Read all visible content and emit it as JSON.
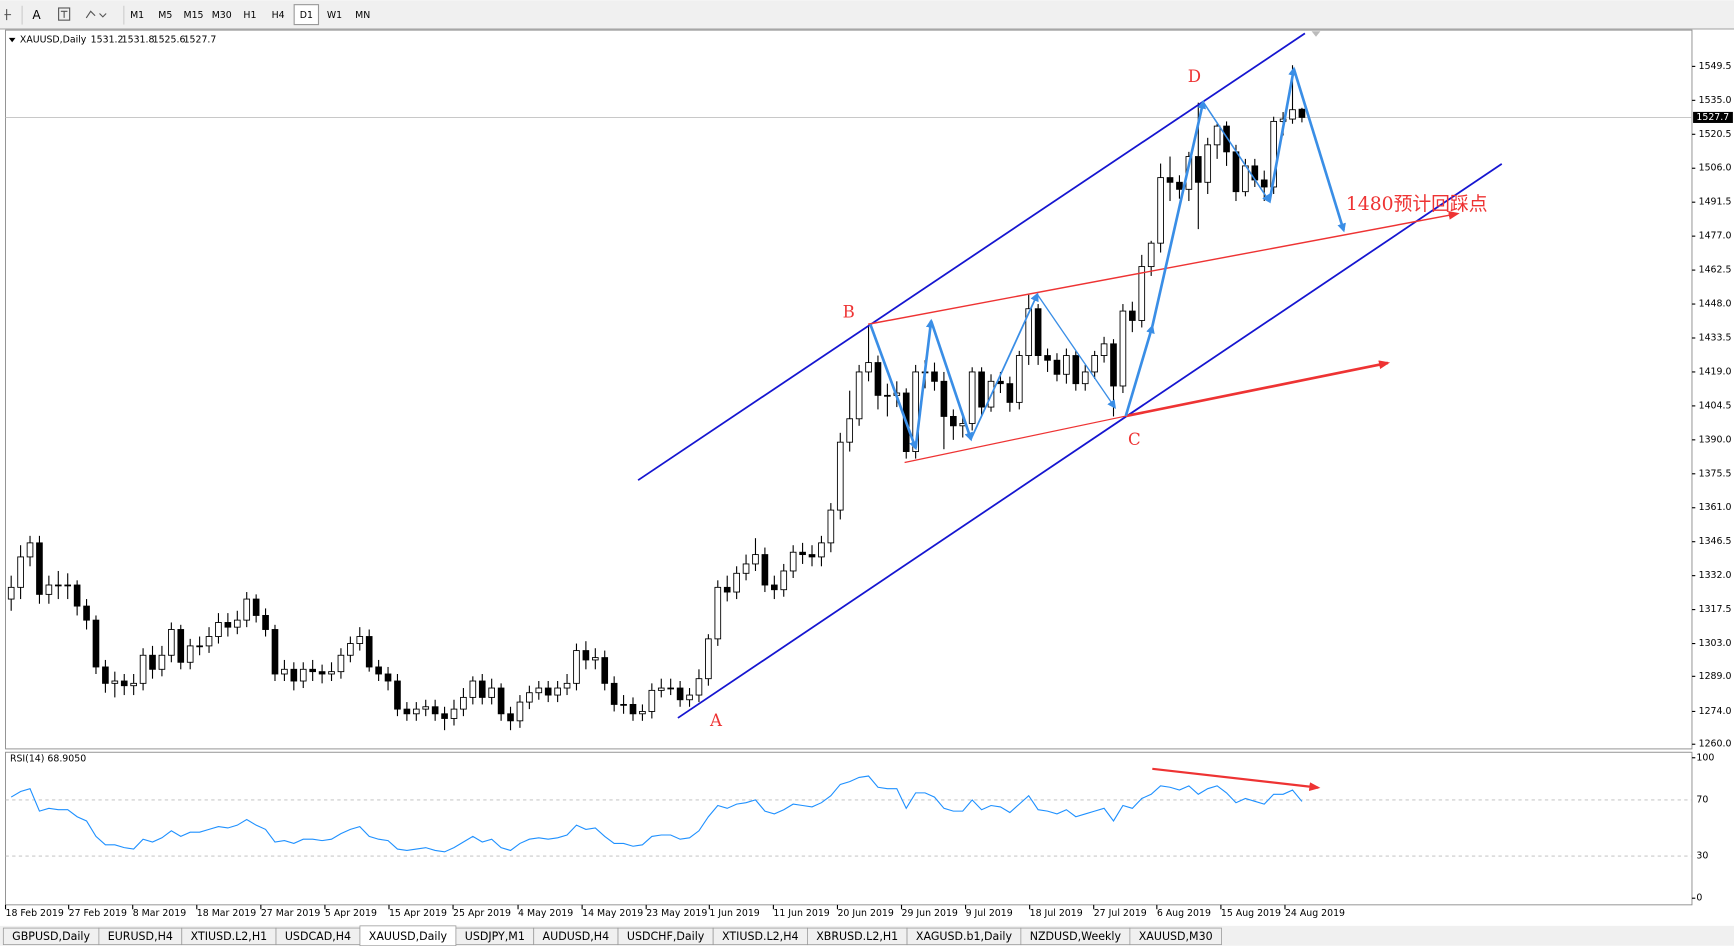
{
  "toolbar": {
    "text_tool": "A",
    "periods": [
      "M1",
      "M5",
      "M15",
      "M30",
      "H1",
      "H4",
      "D1",
      "W1",
      "MN"
    ],
    "active_period": 6
  },
  "chart_data": {
    "type": "candlestick",
    "symbol": "XAUUSD,Daily",
    "ohlc": [
      [
        1322,
        1332,
        1317,
        1327
      ],
      [
        1327,
        1345,
        1322,
        1340
      ],
      [
        1340,
        1349,
        1336,
        1346
      ],
      [
        1346,
        1349,
        1320,
        1324
      ],
      [
        1324,
        1332,
        1320,
        1328
      ],
      [
        1328,
        1334,
        1322,
        1328
      ],
      [
        1328,
        1333,
        1322,
        1328
      ],
      [
        1328,
        1330,
        1315,
        1319
      ],
      [
        1319,
        1322,
        1309,
        1313
      ],
      [
        1313,
        1315,
        1290,
        1293
      ],
      [
        1293,
        1296,
        1282,
        1286
      ],
      [
        1286,
        1291,
        1280,
        1287
      ],
      [
        1287,
        1290,
        1281,
        1285
      ],
      [
        1285,
        1290,
        1281,
        1286
      ],
      [
        1286,
        1301,
        1283,
        1298
      ],
      [
        1298,
        1302,
        1288,
        1292
      ],
      [
        1292,
        1302,
        1289,
        1298
      ],
      [
        1298,
        1312,
        1295,
        1309
      ],
      [
        1309,
        1311,
        1292,
        1295
      ],
      [
        1295,
        1305,
        1292,
        1302
      ],
      [
        1302,
        1306,
        1298,
        1302
      ],
      [
        1302,
        1310,
        1299,
        1306
      ],
      [
        1306,
        1316,
        1303,
        1312
      ],
      [
        1312,
        1316,
        1306,
        1310
      ],
      [
        1310,
        1317,
        1307,
        1313
      ],
      [
        1313,
        1325,
        1310,
        1322
      ],
      [
        1322,
        1324,
        1312,
        1315
      ],
      [
        1315,
        1318,
        1306,
        1309
      ],
      [
        1309,
        1311,
        1287,
        1290
      ],
      [
        1290,
        1296,
        1287,
        1292
      ],
      [
        1292,
        1295,
        1283,
        1287
      ],
      [
        1287,
        1295,
        1284,
        1292
      ],
      [
        1292,
        1296,
        1287,
        1291
      ],
      [
        1291,
        1294,
        1286,
        1290
      ],
      [
        1290,
        1295,
        1287,
        1291
      ],
      [
        1291,
        1301,
        1288,
        1298
      ],
      [
        1298,
        1306,
        1295,
        1303
      ],
      [
        1303,
        1310,
        1300,
        1306
      ],
      [
        1306,
        1309,
        1291,
        1293
      ],
      [
        1293,
        1296,
        1287,
        1290
      ],
      [
        1290,
        1293,
        1283,
        1287
      ],
      [
        1287,
        1290,
        1272,
        1275
      ],
      [
        1275,
        1278,
        1270,
        1273
      ],
      [
        1273,
        1278,
        1270,
        1275
      ],
      [
        1275,
        1279,
        1272,
        1276
      ],
      [
        1276,
        1279,
        1270,
        1273
      ],
      [
        1273,
        1276,
        1266,
        1271
      ],
      [
        1271,
        1279,
        1268,
        1275
      ],
      [
        1275,
        1284,
        1272,
        1280
      ],
      [
        1280,
        1289,
        1277,
        1287
      ],
      [
        1287,
        1290,
        1277,
        1280
      ],
      [
        1280,
        1288,
        1277,
        1284
      ],
      [
        1284,
        1286,
        1270,
        1273
      ],
      [
        1273,
        1276,
        1266,
        1270
      ],
      [
        1270,
        1281,
        1267,
        1278
      ],
      [
        1278,
        1285,
        1275,
        1282
      ],
      [
        1282,
        1287,
        1279,
        1284
      ],
      [
        1284,
        1287,
        1278,
        1281
      ],
      [
        1281,
        1287,
        1278,
        1284
      ],
      [
        1284,
        1290,
        1281,
        1286
      ],
      [
        1286,
        1303,
        1283,
        1300
      ],
      [
        1300,
        1304,
        1292,
        1296
      ],
      [
        1296,
        1301,
        1292,
        1297
      ],
      [
        1297,
        1300,
        1283,
        1286
      ],
      [
        1286,
        1289,
        1274,
        1277
      ],
      [
        1277,
        1281,
        1273,
        1277
      ],
      [
        1277,
        1280,
        1270,
        1273
      ],
      [
        1273,
        1277,
        1270,
        1274
      ],
      [
        1274,
        1286,
        1271,
        1283
      ],
      [
        1283,
        1288,
        1280,
        1284
      ],
      [
        1284,
        1288,
        1281,
        1284
      ],
      [
        1284,
        1287,
        1276,
        1279
      ],
      [
        1279,
        1284,
        1276,
        1281
      ],
      [
        1281,
        1292,
        1278,
        1288
      ],
      [
        1288,
        1307,
        1285,
        1305
      ],
      [
        1305,
        1330,
        1302,
        1327
      ],
      [
        1327,
        1332,
        1321,
        1325
      ],
      [
        1325,
        1336,
        1322,
        1333
      ],
      [
        1333,
        1341,
        1330,
        1337
      ],
      [
        1337,
        1348,
        1334,
        1341
      ],
      [
        1341,
        1344,
        1325,
        1328
      ],
      [
        1328,
        1332,
        1322,
        1326
      ],
      [
        1326,
        1337,
        1323,
        1334
      ],
      [
        1334,
        1345,
        1331,
        1342
      ],
      [
        1342,
        1346,
        1337,
        1341
      ],
      [
        1341,
        1345,
        1336,
        1340
      ],
      [
        1340,
        1349,
        1336,
        1346
      ],
      [
        1346,
        1363,
        1342,
        1360
      ],
      [
        1360,
        1393,
        1356,
        1389
      ],
      [
        1389,
        1411,
        1385,
        1399
      ],
      [
        1399,
        1422,
        1396,
        1419
      ],
      [
        1419,
        1439,
        1415,
        1423
      ],
      [
        1423,
        1426,
        1403,
        1409
      ],
      [
        1409,
        1414,
        1400,
        1409
      ],
      [
        1409,
        1415,
        1404,
        1410
      ],
      [
        1410,
        1412,
        1382,
        1385
      ],
      [
        1385,
        1422,
        1382,
        1419
      ],
      [
        1419,
        1424,
        1412,
        1419
      ],
      [
        1419,
        1423,
        1411,
        1415
      ],
      [
        1415,
        1419,
        1386,
        1400
      ],
      [
        1400,
        1403,
        1390,
        1396
      ],
      [
        1396,
        1401,
        1391,
        1397
      ],
      [
        1397,
        1421,
        1394,
        1419
      ],
      [
        1419,
        1421,
        1400,
        1404
      ],
      [
        1404,
        1418,
        1402,
        1415
      ],
      [
        1415,
        1419,
        1410,
        1414
      ],
      [
        1414,
        1417,
        1402,
        1406
      ],
      [
        1406,
        1428,
        1403,
        1426
      ],
      [
        1426,
        1452,
        1422,
        1446
      ],
      [
        1446,
        1448,
        1422,
        1426
      ],
      [
        1426,
        1429,
        1419,
        1424
      ],
      [
        1424,
        1427,
        1415,
        1418
      ],
      [
        1418,
        1429,
        1414,
        1426
      ],
      [
        1426,
        1428,
        1411,
        1414
      ],
      [
        1414,
        1422,
        1411,
        1419
      ],
      [
        1419,
        1428,
        1416,
        1426
      ],
      [
        1426,
        1434,
        1423,
        1431
      ],
      [
        1431,
        1433,
        1400,
        1413
      ],
      [
        1413,
        1448,
        1410,
        1445
      ],
      [
        1445,
        1449,
        1436,
        1441
      ],
      [
        1441,
        1469,
        1438,
        1464
      ],
      [
        1464,
        1475,
        1460,
        1474
      ],
      [
        1474,
        1508,
        1470,
        1502
      ],
      [
        1502,
        1511,
        1492,
        1500
      ],
      [
        1500,
        1503,
        1493,
        1497
      ],
      [
        1497,
        1513,
        1492,
        1511
      ],
      [
        1511,
        1534,
        1480,
        1500
      ],
      [
        1500,
        1519,
        1495,
        1516
      ],
      [
        1516,
        1525,
        1510,
        1524
      ],
      [
        1524,
        1526,
        1507,
        1513
      ],
      [
        1513,
        1516,
        1492,
        1496
      ],
      [
        1496,
        1510,
        1494,
        1507
      ],
      [
        1507,
        1510,
        1498,
        1501
      ],
      [
        1501,
        1505,
        1492,
        1498
      ],
      [
        1498,
        1528,
        1495,
        1526
      ],
      [
        1526,
        1530,
        1520,
        1527
      ],
      [
        1527,
        1550,
        1525,
        1531
      ],
      [
        1531.2,
        1531.8,
        1525.6,
        1527.7
      ]
    ],
    "xlim": [
      -0.6,
      178.4
    ],
    "xticks": [
      {
        "value": -0.6,
        "label": "18 Feb 2019"
      },
      {
        "value": 6.1,
        "label": "27 Feb 2019"
      },
      {
        "value": 12.9,
        "label": "8 Mar 2019"
      },
      {
        "value": 19.7,
        "label": "18 Mar 2019"
      },
      {
        "value": 26.5,
        "label": "27 Mar 2019"
      },
      {
        "value": 33.3,
        "label": "5 Apr 2019"
      },
      {
        "value": 40.1,
        "label": "15 Apr 2019"
      },
      {
        "value": 46.9,
        "label": "25 Apr 2019"
      },
      {
        "value": 53.8,
        "label": "4 May 2019"
      },
      {
        "value": 60.6,
        "label": "14 May 2019"
      },
      {
        "value": 67.4,
        "label": "23 May 2019"
      },
      {
        "value": 74.1,
        "label": "1 Jun 2019"
      },
      {
        "value": 80.9,
        "label": "11 Jun 2019"
      },
      {
        "value": 87.7,
        "label": "20 Jun 2019"
      },
      {
        "value": 94.5,
        "label": "29 Jun 2019"
      },
      {
        "value": 101.3,
        "label": "9 Jul 2019"
      },
      {
        "value": 108.1,
        "label": "18 Jul 2019"
      },
      {
        "value": 114.9,
        "label": "27 Jul 2019"
      },
      {
        "value": 121.6,
        "label": "6 Aug 2019"
      },
      {
        "value": 128.4,
        "label": "15 Aug 2019"
      },
      {
        "value": 135.2,
        "label": "24 Aug 2019"
      }
    ],
    "ylim": [
      1258,
      1565
    ],
    "yticks": [
      {
        "value": 1260,
        "label": "1260.0"
      },
      {
        "value": 1274,
        "label": "1274.0"
      },
      {
        "value": 1289,
        "label": "1289.0"
      },
      {
        "value": 1303,
        "label": "1303.0"
      },
      1317.5,
      {
        "value": 1332,
        "label": "1332.0"
      },
      1346.5,
      {
        "value": 1361,
        "label": "1361.0"
      },
      1375.5,
      {
        "value": 1390,
        "label": "1390.0"
      },
      1404.5,
      {
        "value": 1419,
        "label": "1419.0"
      },
      1433.5,
      {
        "value": 1448,
        "label": "1448.0"
      },
      1462.5,
      {
        "value": 1477,
        "label": "1477.0"
      },
      1491.5,
      {
        "value": 1506,
        "label": "1506.0"
      },
      1520.5,
      {
        "value": 1535,
        "label": "1535.0"
      },
      1549.5
    ],
    "point_labels": [
      "A",
      "B",
      "C",
      "D"
    ],
    "note": "1480预计回踩点",
    "rsi": {
      "title": "RSI(14) 68.9050",
      "color": "#1e90ff",
      "ylim": [
        0,
        100
      ],
      "yticks": [
        100,
        70,
        30,
        0
      ],
      "values": [
        72,
        76,
        78,
        62,
        64,
        63,
        63,
        58,
        55,
        44,
        38,
        38,
        36,
        35,
        42,
        40,
        43,
        48,
        44,
        47,
        47,
        49,
        51,
        50,
        52,
        56,
        52,
        49,
        40,
        41,
        39,
        42,
        42,
        41,
        42,
        46,
        49,
        51,
        44,
        42,
        41,
        35,
        34,
        35,
        36,
        34,
        33,
        36,
        40,
        44,
        40,
        42,
        36,
        34,
        39,
        42,
        43,
        42,
        43,
        45,
        52,
        49,
        50,
        44,
        39,
        39,
        37,
        38,
        44,
        45,
        45,
        42,
        43,
        48,
        58,
        66,
        64,
        67,
        68,
        70,
        62,
        60,
        63,
        67,
        66,
        65,
        68,
        73,
        81,
        83,
        86,
        87,
        79,
        78,
        78,
        64,
        75,
        75,
        72,
        64,
        62,
        62,
        70,
        63,
        66,
        65,
        61,
        67,
        73,
        63,
        62,
        60,
        63,
        58,
        60,
        62,
        64,
        55,
        66,
        64,
        71,
        74,
        80,
        79,
        77,
        80,
        74,
        78,
        80,
        75,
        68,
        71,
        69,
        67,
        74,
        74,
        77,
        68.905
      ]
    }
  },
  "tabs": [
    "GBPUSD,Daily",
    "EURUSD,H4",
    "XTIUSD.L2,H1",
    "USDCAD,H4",
    "XAUUSD,Daily",
    "USDJPY,M1",
    "AUDUSD,H4",
    "USDCHF,Daily",
    "XTIUSD.L2,H4",
    "XBRUSD.L2,H1",
    "XAGUSD.b1,Daily",
    "NZDUSD,Weekly",
    "XAUUSD,M30"
  ],
  "active_tab": 4
}
